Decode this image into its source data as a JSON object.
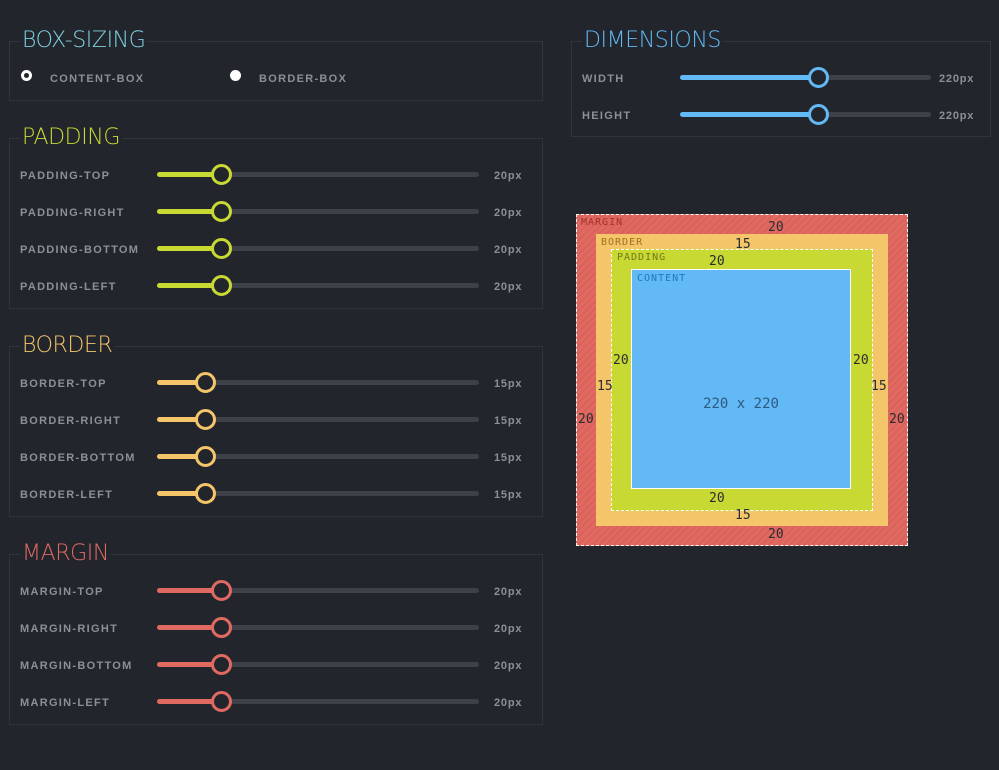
{
  "colors": {
    "boxsizing": "#7fd1e0",
    "dimensions": "#62b9f5",
    "padding": "#c8d934",
    "border": "#f5c56a",
    "margin": "#e06a62"
  },
  "box_sizing": {
    "title": "BOX-SIZING",
    "options": [
      {
        "label": "CONTENT-BOX",
        "selected": true
      },
      {
        "label": "BORDER-BOX",
        "selected": false
      }
    ]
  },
  "dimensions": {
    "title": "DIMENSIONS",
    "sliders": [
      {
        "label": "WIDTH",
        "value": "220px",
        "level": 0.55
      },
      {
        "label": "HEIGHT",
        "value": "220px",
        "level": 0.55
      }
    ]
  },
  "padding": {
    "title": "PADDING",
    "sliders": [
      {
        "label": "PADDING-TOP",
        "value": "20px",
        "level": 0.2
      },
      {
        "label": "PADDING-RIGHT",
        "value": "20px",
        "level": 0.2
      },
      {
        "label": "PADDING-BOTTOM",
        "value": "20px",
        "level": 0.2
      },
      {
        "label": "PADDING-LEFT",
        "value": "20px",
        "level": 0.2
      }
    ]
  },
  "border": {
    "title": "BORDER",
    "sliders": [
      {
        "label": "BORDER-TOP",
        "value": "15px",
        "level": 0.15
      },
      {
        "label": "BORDER-RIGHT",
        "value": "15px",
        "level": 0.15
      },
      {
        "label": "BORDER-BOTTOM",
        "value": "15px",
        "level": 0.15
      },
      {
        "label": "BORDER-LEFT",
        "value": "15px",
        "level": 0.15
      }
    ]
  },
  "margin": {
    "title": "MARGIN",
    "sliders": [
      {
        "label": "MARGIN-TOP",
        "value": "20px",
        "level": 0.2
      },
      {
        "label": "MARGIN-RIGHT",
        "value": "20px",
        "level": 0.2
      },
      {
        "label": "MARGIN-BOTTOM",
        "value": "20px",
        "level": 0.2
      },
      {
        "label": "MARGIN-LEFT",
        "value": "20px",
        "level": 0.2
      }
    ]
  },
  "box_model": {
    "margin_label": "MARGIN",
    "border_label": "BORDER",
    "padding_label": "PADDING",
    "content_label": "CONTENT",
    "size_text": "220 x 220",
    "margin": {
      "top": "20",
      "right": "20",
      "bottom": "20",
      "left": "20"
    },
    "border": {
      "top": "15",
      "right": "15",
      "bottom": "15",
      "left": "15"
    },
    "padding": {
      "top": "20",
      "right": "20",
      "bottom": "20",
      "left": "20"
    }
  }
}
